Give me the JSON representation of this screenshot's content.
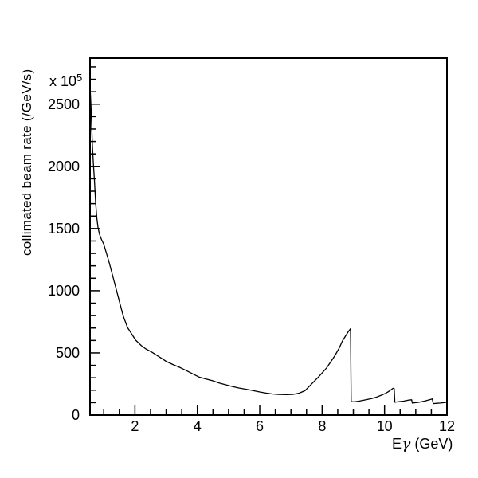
{
  "figure": {
    "background": "#ffffff",
    "line_color": "#000000"
  },
  "chart_data": {
    "type": "line",
    "title": "",
    "ylabel": "collimated beam rate (/GeV/s)",
    "xlabel_prefix": "E",
    "xlabel_symbol": "γ",
    "xlabel_units": "(GeV)",
    "multiplier_base": "x 10",
    "multiplier_exp": "5",
    "xlim": [
      0.56,
      12
    ],
    "ylim": [
      0,
      2870
    ],
    "x_major_ticks": [
      2,
      4,
      6,
      8,
      10,
      12
    ],
    "x_minor_step": 0.5,
    "y_major_ticks": [
      0,
      500,
      1000,
      1500,
      2000,
      2500
    ],
    "y_minor_step": 100,
    "grid": false,
    "legend": null,
    "annotations": {
      "coherent_edge_energy_gev": 9.0
    },
    "series": [
      {
        "name": "collimated beam rate",
        "color": "#000000",
        "points": [
          [
            0.57,
            2590
          ],
          [
            0.59,
            2480
          ],
          [
            0.61,
            2330
          ],
          [
            0.64,
            2150
          ],
          [
            0.67,
            2010
          ],
          [
            0.7,
            1890
          ],
          [
            0.74,
            1710
          ],
          [
            0.78,
            1580
          ],
          [
            0.82,
            1500
          ],
          [
            0.87,
            1450
          ],
          [
            0.93,
            1410
          ],
          [
            1.0,
            1375
          ],
          [
            1.17,
            1230
          ],
          [
            1.34,
            1070
          ],
          [
            1.51,
            905
          ],
          [
            1.62,
            800
          ],
          [
            1.76,
            705
          ],
          [
            1.9,
            650
          ],
          [
            2.02,
            603
          ],
          [
            2.2,
            560
          ],
          [
            2.35,
            532
          ],
          [
            2.55,
            505
          ],
          [
            2.78,
            468
          ],
          [
            3.0,
            432
          ],
          [
            3.22,
            406
          ],
          [
            3.45,
            382
          ],
          [
            3.63,
            360
          ],
          [
            3.85,
            332
          ],
          [
            4.06,
            305
          ],
          [
            4.28,
            290
          ],
          [
            4.49,
            276
          ],
          [
            4.7,
            258
          ],
          [
            4.9,
            244
          ],
          [
            5.12,
            230
          ],
          [
            5.33,
            218
          ],
          [
            5.55,
            208
          ],
          [
            5.77,
            198
          ],
          [
            6.0,
            186
          ],
          [
            6.2,
            177
          ],
          [
            6.4,
            170
          ],
          [
            6.6,
            166
          ],
          [
            6.85,
            164
          ],
          [
            7.05,
            166
          ],
          [
            7.25,
            175
          ],
          [
            7.45,
            196
          ],
          [
            7.63,
            242
          ],
          [
            7.89,
            308
          ],
          [
            8.14,
            378
          ],
          [
            8.4,
            474
          ],
          [
            8.55,
            540
          ],
          [
            8.65,
            596
          ],
          [
            8.76,
            640
          ],
          [
            8.84,
            672
          ],
          [
            8.91,
            695
          ],
          [
            8.93,
            108
          ],
          [
            9.05,
            107
          ],
          [
            9.2,
            113
          ],
          [
            9.42,
            124
          ],
          [
            9.6,
            134
          ],
          [
            9.76,
            146
          ],
          [
            9.9,
            160
          ],
          [
            10.02,
            173
          ],
          [
            10.12,
            188
          ],
          [
            10.2,
            202
          ],
          [
            10.27,
            215
          ],
          [
            10.31,
            212
          ],
          [
            10.33,
            103
          ],
          [
            10.46,
            108
          ],
          [
            10.61,
            112
          ],
          [
            10.78,
            121
          ],
          [
            10.87,
            123
          ],
          [
            10.89,
            96
          ],
          [
            11.0,
            100
          ],
          [
            11.12,
            104
          ],
          [
            11.29,
            113
          ],
          [
            11.45,
            124
          ],
          [
            11.53,
            130
          ],
          [
            11.56,
            92
          ],
          [
            11.68,
            95
          ],
          [
            11.79,
            97
          ],
          [
            11.9,
            100
          ],
          [
            12.0,
            103
          ]
        ]
      }
    ]
  }
}
